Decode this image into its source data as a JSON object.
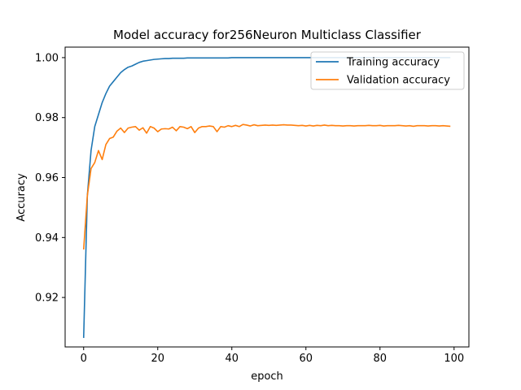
{
  "chart_data": {
    "type": "line",
    "title": "Model accuracy for256Neuron Multiclass Classifier",
    "xlabel": "epoch",
    "ylabel": "Accuracy",
    "xlim": [
      -5,
      104
    ],
    "ylim": [
      0.9035,
      1.0035
    ],
    "xticks": [
      0,
      20,
      40,
      60,
      80,
      100
    ],
    "yticks": [
      0.92,
      0.94,
      0.96,
      0.98,
      1.0
    ],
    "ytick_labels": [
      "0.92",
      "0.94",
      "0.96",
      "0.98",
      "1.00"
    ],
    "grid": false,
    "legend": "upper right",
    "series": [
      {
        "name": "Training accuracy",
        "color": "#1f77b4",
        "values": [
          0.9065,
          0.954,
          0.969,
          0.977,
          0.981,
          0.985,
          0.988,
          0.9905,
          0.992,
          0.9935,
          0.995,
          0.996,
          0.9968,
          0.9972,
          0.9978,
          0.9984,
          0.9988,
          0.999,
          0.9992,
          0.9994,
          0.9995,
          0.9996,
          0.9997,
          0.9997,
          0.9998,
          0.9998,
          0.9998,
          0.9998,
          0.9999,
          0.9999,
          0.9999,
          0.9999,
          0.9999,
          0.9999,
          0.9999,
          0.9999,
          0.9999,
          0.9999,
          0.9999,
          0.9999,
          1.0,
          1.0,
          1.0,
          1.0,
          1.0,
          1.0,
          1.0,
          1.0,
          1.0,
          1.0,
          1.0,
          1.0,
          1.0,
          1.0,
          1.0,
          1.0,
          1.0,
          1.0,
          1.0,
          1.0,
          1.0,
          1.0,
          1.0,
          1.0,
          1.0,
          1.0,
          1.0,
          1.0,
          1.0,
          1.0,
          1.0,
          1.0,
          1.0,
          1.0,
          1.0,
          1.0,
          1.0,
          1.0,
          1.0,
          1.0,
          1.0,
          1.0,
          1.0,
          1.0,
          1.0,
          1.0,
          1.0,
          1.0,
          1.0,
          1.0,
          1.0,
          1.0,
          1.0,
          1.0,
          1.0,
          1.0,
          1.0,
          1.0,
          1.0,
          1.0
        ]
      },
      {
        "name": "Validation accuracy",
        "color": "#ff7f0e",
        "values": [
          0.936,
          0.954,
          0.963,
          0.965,
          0.969,
          0.966,
          0.971,
          0.973,
          0.9735,
          0.9755,
          0.9765,
          0.975,
          0.9765,
          0.9768,
          0.977,
          0.9758,
          0.9766,
          0.9748,
          0.977,
          0.9765,
          0.9753,
          0.9762,
          0.9763,
          0.9762,
          0.9768,
          0.9756,
          0.977,
          0.9768,
          0.9763,
          0.977,
          0.975,
          0.9765,
          0.977,
          0.977,
          0.9772,
          0.977,
          0.9753,
          0.977,
          0.9768,
          0.9773,
          0.977,
          0.9774,
          0.977,
          0.9777,
          0.9775,
          0.9772,
          0.9776,
          0.9773,
          0.9774,
          0.9775,
          0.9774,
          0.9775,
          0.9774,
          0.9775,
          0.9776,
          0.9775,
          0.9775,
          0.9774,
          0.9773,
          0.9774,
          0.9772,
          0.9774,
          0.9772,
          0.9774,
          0.9773,
          0.9775,
          0.9773,
          0.9774,
          0.9773,
          0.9773,
          0.9772,
          0.9773,
          0.9773,
          0.9772,
          0.9773,
          0.9773,
          0.9773,
          0.9774,
          0.9773,
          0.9773,
          0.9774,
          0.9772,
          0.9773,
          0.9773,
          0.9773,
          0.9774,
          0.9773,
          0.9772,
          0.9773,
          0.9771,
          0.9773,
          0.9773,
          0.9773,
          0.9772,
          0.9773,
          0.9773,
          0.9772,
          0.9773,
          0.9772,
          0.9771
        ]
      }
    ]
  }
}
